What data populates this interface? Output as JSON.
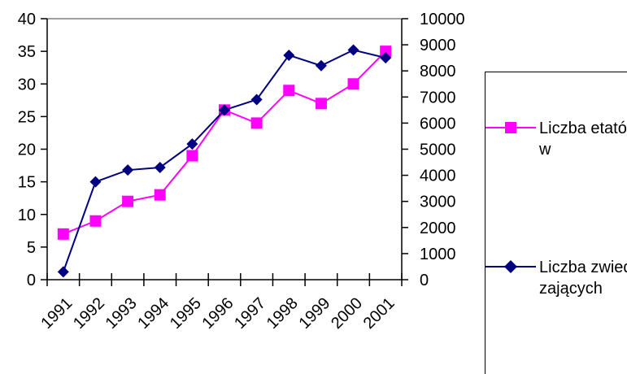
{
  "chart_data": {
    "type": "line",
    "categories": [
      "1991",
      "1992",
      "1993",
      "1994",
      "1995",
      "1996",
      "1997",
      "1998",
      "1999",
      "2000",
      "2001"
    ],
    "y_left": {
      "range": [
        0,
        40
      ],
      "ticks": [
        "0",
        "5",
        "10",
        "15",
        "20",
        "25",
        "30",
        "35",
        "40"
      ]
    },
    "y_right": {
      "range": [
        0,
        10000
      ],
      "ticks": [
        "0",
        "1000",
        "2000",
        "3000",
        "4000",
        "5000",
        "6000",
        "7000",
        "8000",
        "9000",
        "10000"
      ]
    },
    "grid": false,
    "legend_position": "right",
    "series": [
      {
        "name": "Liczba etatów",
        "axis": "left",
        "color": "#ff00ff",
        "marker": "square",
        "values": [
          7,
          9,
          12,
          13,
          19,
          26,
          24,
          29,
          27,
          30,
          35
        ]
      },
      {
        "name": "Liczba zwiedzających",
        "axis": "right",
        "color": "#000080",
        "marker": "diamond",
        "values": [
          300,
          3750,
          4200,
          4300,
          5200,
          6500,
          6900,
          8600,
          8200,
          8800,
          8500
        ]
      }
    ]
  },
  "legend": {
    "entry1": "Liczba etatów",
    "entry2": "Liczba zwiedzających"
  }
}
